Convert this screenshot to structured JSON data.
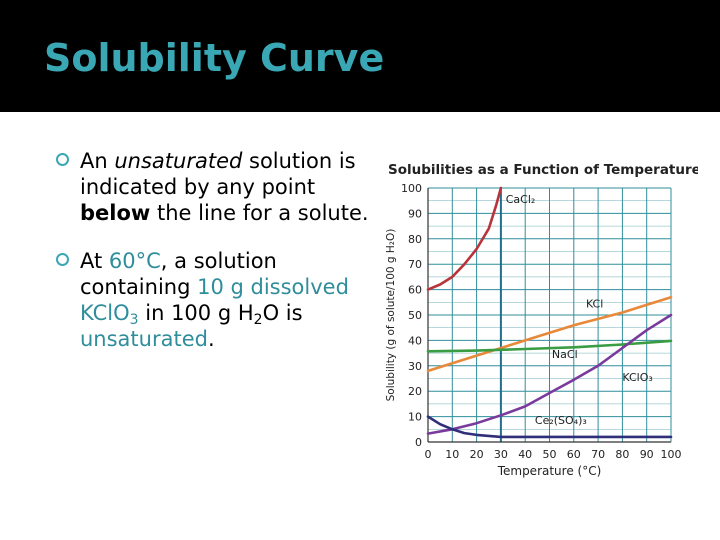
{
  "slide": {
    "title": "Solubility Curve",
    "bullet1": {
      "w1": "An ",
      "w2": "unsaturated",
      "w3": " solution is indicated by any point ",
      "w4": "below",
      "w5": " the line for a solute."
    },
    "bullet2": {
      "w1": "At ",
      "w2": "60°C",
      "w3": ", a solution containing ",
      "w4": "10 g dissolved KClO",
      "w4sub": "3",
      "w5": " in 100 g H",
      "w5sub": "2",
      "w6": "O is ",
      "w7": "unsaturated",
      "w8": "."
    }
  },
  "colors": {
    "title": "#3aa7b5",
    "accent_text": "#2f8e9b",
    "grid": "#2f8e9b",
    "CaCl2": "#b8343a",
    "KCl": "#e8893a",
    "NaCl": "#3a9c43",
    "KClO3": "#7a3a9c",
    "Ce2(SO4)3": "#2f2f7a"
  },
  "chart_data": {
    "type": "line",
    "title": "Solubilities as a Function of Temperature",
    "xlabel": "Temperature (°C)",
    "ylabel": "Solubility (g of solute/100 g H₂O)",
    "xlim": [
      0,
      100
    ],
    "ylim": [
      0,
      100
    ],
    "xticks": [
      0,
      10,
      20,
      30,
      40,
      50,
      60,
      70,
      80,
      90,
      100
    ],
    "yticks": [
      0,
      10,
      20,
      30,
      40,
      50,
      60,
      70,
      80,
      90,
      100
    ],
    "grid": true,
    "series": [
      {
        "name": "CaCl₂",
        "x": [
          0,
          5,
          10,
          15,
          20,
          25,
          28,
          30
        ],
        "y": [
          60,
          62,
          65,
          70,
          76,
          84,
          93,
          100
        ]
      },
      {
        "name": "KCl",
        "x": [
          0,
          20,
          40,
          60,
          80,
          100
        ],
        "y": [
          28,
          34,
          40,
          46,
          51,
          57
        ]
      },
      {
        "name": "NaCl",
        "x": [
          0,
          20,
          40,
          60,
          80,
          100
        ],
        "y": [
          35.7,
          36.0,
          36.6,
          37.3,
          38.4,
          39.8
        ]
      },
      {
        "name": "KClO₃",
        "x": [
          0,
          10,
          20,
          30,
          40,
          50,
          60,
          70,
          80,
          90,
          100
        ],
        "y": [
          3.3,
          5,
          7.4,
          10.5,
          14,
          19.3,
          24.5,
          30,
          37,
          44,
          50
        ]
      },
      {
        "name": "Ce₂(SO₄)₃",
        "x": [
          0,
          5,
          10,
          15,
          20,
          25,
          30,
          40,
          50,
          60,
          80,
          100
        ],
        "y": [
          10,
          7,
          5,
          3.5,
          2.8,
          2.4,
          2,
          2,
          2,
          2,
          2,
          2
        ]
      }
    ],
    "labels": [
      {
        "series": "CaCl₂",
        "x": 32,
        "y": 94
      },
      {
        "series": "KCl",
        "x": 65,
        "y": 53
      },
      {
        "series": "NaCl",
        "x": 51,
        "y": 33
      },
      {
        "series": "KClO₃",
        "x": 80,
        "y": 24
      },
      {
        "series": "Ce₂(SO₄)₃",
        "x": 44,
        "y": 7
      }
    ],
    "annotations": [
      {
        "type": "vertical-line",
        "x": 30
      }
    ]
  }
}
